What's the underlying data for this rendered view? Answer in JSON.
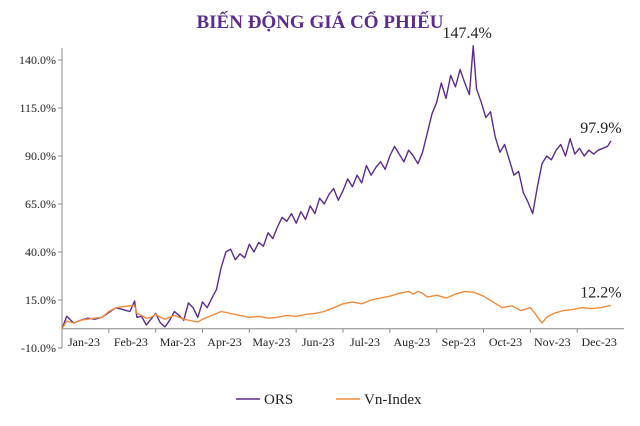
{
  "chart_data": {
    "type": "line",
    "title": "BIẾN ĐỘNG GIÁ CỔ PHIẾU",
    "xlabel": "",
    "ylabel": "",
    "x_ticks": [
      "Jan-23",
      "Feb-23",
      "Mar-23",
      "Apr-23",
      "May-23",
      "Jun-23",
      "Jul-23",
      "Aug-23",
      "Sep-23",
      "Oct-23",
      "Nov-23",
      "Dec-23"
    ],
    "y_ticks": [
      "-10.0%",
      "15.0%",
      "40.0%",
      "65.0%",
      "90.0%",
      "115.0%",
      "140.0%"
    ],
    "ylim": [
      -10,
      140
    ],
    "xlim": [
      0,
      12
    ],
    "grid": false,
    "legend": "bottom",
    "series": [
      {
        "name": "ORS",
        "color": "#5b2c8e",
        "points": [
          [
            0.0,
            0.0
          ],
          [
            0.1,
            6.5
          ],
          [
            0.25,
            3.0
          ],
          [
            0.4,
            4.5
          ],
          [
            0.55,
            5.5
          ],
          [
            0.7,
            5.0
          ],
          [
            0.85,
            6.0
          ],
          [
            1.0,
            8.5
          ],
          [
            1.15,
            11.0
          ],
          [
            1.3,
            10.0
          ],
          [
            1.45,
            9.0
          ],
          [
            1.55,
            14.5
          ],
          [
            1.6,
            6.0
          ],
          [
            1.7,
            6.5
          ],
          [
            1.8,
            2.0
          ],
          [
            1.9,
            5.0
          ],
          [
            2.0,
            8.0
          ],
          [
            2.1,
            3.0
          ],
          [
            2.2,
            1.0
          ],
          [
            2.3,
            4.5
          ],
          [
            2.4,
            9.0
          ],
          [
            2.5,
            7.0
          ],
          [
            2.6,
            4.5
          ],
          [
            2.7,
            13.5
          ],
          [
            2.8,
            11.0
          ],
          [
            2.9,
            6.0
          ],
          [
            3.0,
            14.0
          ],
          [
            3.1,
            11.0
          ],
          [
            3.2,
            16.0
          ],
          [
            3.3,
            20.5
          ],
          [
            3.4,
            32.0
          ],
          [
            3.5,
            40.0
          ],
          [
            3.6,
            41.5
          ],
          [
            3.7,
            36.0
          ],
          [
            3.8,
            39.0
          ],
          [
            3.9,
            37.0
          ],
          [
            4.0,
            44.0
          ],
          [
            4.1,
            40.0
          ],
          [
            4.2,
            45.0
          ],
          [
            4.3,
            43.0
          ],
          [
            4.4,
            50.0
          ],
          [
            4.5,
            47.0
          ],
          [
            4.6,
            53.0
          ],
          [
            4.7,
            58.0
          ],
          [
            4.8,
            56.0
          ],
          [
            4.9,
            60.0
          ],
          [
            5.0,
            55.0
          ],
          [
            5.1,
            61.0
          ],
          [
            5.2,
            57.0
          ],
          [
            5.3,
            64.0
          ],
          [
            5.4,
            60.0
          ],
          [
            5.5,
            68.0
          ],
          [
            5.6,
            65.0
          ],
          [
            5.7,
            70.0
          ],
          [
            5.8,
            73.0
          ],
          [
            5.9,
            67.0
          ],
          [
            6.0,
            72.0
          ],
          [
            6.1,
            78.0
          ],
          [
            6.2,
            74.0
          ],
          [
            6.3,
            80.0
          ],
          [
            6.4,
            76.0
          ],
          [
            6.5,
            85.0
          ],
          [
            6.6,
            80.0
          ],
          [
            6.7,
            84.0
          ],
          [
            6.8,
            87.0
          ],
          [
            6.9,
            83.0
          ],
          [
            7.0,
            90.0
          ],
          [
            7.1,
            95.0
          ],
          [
            7.2,
            91.0
          ],
          [
            7.3,
            87.0
          ],
          [
            7.4,
            93.0
          ],
          [
            7.5,
            90.0
          ],
          [
            7.6,
            86.0
          ],
          [
            7.7,
            92.0
          ],
          [
            7.8,
            102.0
          ],
          [
            7.9,
            112.0
          ],
          [
            8.0,
            118.0
          ],
          [
            8.1,
            128.0
          ],
          [
            8.2,
            120.0
          ],
          [
            8.3,
            132.0
          ],
          [
            8.4,
            126.0
          ],
          [
            8.5,
            135.0
          ],
          [
            8.6,
            128.0
          ],
          [
            8.7,
            122.0
          ],
          [
            8.78,
            147.4
          ],
          [
            8.85,
            125.0
          ],
          [
            8.95,
            118.0
          ],
          [
            9.05,
            110.0
          ],
          [
            9.15,
            113.0
          ],
          [
            9.25,
            100.0
          ],
          [
            9.35,
            92.0
          ],
          [
            9.45,
            96.0
          ],
          [
            9.55,
            88.0
          ],
          [
            9.65,
            80.0
          ],
          [
            9.75,
            82.0
          ],
          [
            9.85,
            71.0
          ],
          [
            9.95,
            66.0
          ],
          [
            10.05,
            60.0
          ],
          [
            10.15,
            74.0
          ],
          [
            10.25,
            86.0
          ],
          [
            10.35,
            90.0
          ],
          [
            10.45,
            88.0
          ],
          [
            10.55,
            93.0
          ],
          [
            10.65,
            96.0
          ],
          [
            10.75,
            90.0
          ],
          [
            10.85,
            99.0
          ],
          [
            10.95,
            91.0
          ],
          [
            11.05,
            94.0
          ],
          [
            11.15,
            90.0
          ],
          [
            11.25,
            93.0
          ],
          [
            11.35,
            91.0
          ],
          [
            11.45,
            93.0
          ],
          [
            11.55,
            94.0
          ],
          [
            11.65,
            95.0
          ],
          [
            11.72,
            97.9
          ]
        ]
      },
      {
        "name": "Vn-Index",
        "color": "#f08c3c",
        "points": [
          [
            0.0,
            0.0
          ],
          [
            0.1,
            4.0
          ],
          [
            0.25,
            3.0
          ],
          [
            0.4,
            4.5
          ],
          [
            0.55,
            5.0
          ],
          [
            0.7,
            5.5
          ],
          [
            0.85,
            6.0
          ],
          [
            1.0,
            9.0
          ],
          [
            1.15,
            11.0
          ],
          [
            1.3,
            11.5
          ],
          [
            1.45,
            12.0
          ],
          [
            1.55,
            12.0
          ],
          [
            1.6,
            8.0
          ],
          [
            1.7,
            7.0
          ],
          [
            1.8,
            5.5
          ],
          [
            1.9,
            6.0
          ],
          [
            2.0,
            7.5
          ],
          [
            2.1,
            6.0
          ],
          [
            2.2,
            5.0
          ],
          [
            2.3,
            6.0
          ],
          [
            2.4,
            7.0
          ],
          [
            2.5,
            6.0
          ],
          [
            2.6,
            5.0
          ],
          [
            2.7,
            4.5
          ],
          [
            2.8,
            4.0
          ],
          [
            2.9,
            3.5
          ],
          [
            3.0,
            5.0
          ],
          [
            3.2,
            7.0
          ],
          [
            3.4,
            9.0
          ],
          [
            3.6,
            8.0
          ],
          [
            3.8,
            7.0
          ],
          [
            4.0,
            6.0
          ],
          [
            4.2,
            6.5
          ],
          [
            4.4,
            5.5
          ],
          [
            4.6,
            6.0
          ],
          [
            4.8,
            7.0
          ],
          [
            5.0,
            6.5
          ],
          [
            5.2,
            7.5
          ],
          [
            5.4,
            8.0
          ],
          [
            5.6,
            9.0
          ],
          [
            5.8,
            11.0
          ],
          [
            6.0,
            13.0
          ],
          [
            6.2,
            14.0
          ],
          [
            6.4,
            13.0
          ],
          [
            6.6,
            15.0
          ],
          [
            6.8,
            16.0
          ],
          [
            7.0,
            17.0
          ],
          [
            7.2,
            18.5
          ],
          [
            7.4,
            19.5
          ],
          [
            7.5,
            18.0
          ],
          [
            7.6,
            19.5
          ],
          [
            7.7,
            18.5
          ],
          [
            7.8,
            16.5
          ],
          [
            8.0,
            17.5
          ],
          [
            8.2,
            16.0
          ],
          [
            8.4,
            18.0
          ],
          [
            8.6,
            19.5
          ],
          [
            8.8,
            19.0
          ],
          [
            9.0,
            17.0
          ],
          [
            9.2,
            14.0
          ],
          [
            9.4,
            11.0
          ],
          [
            9.6,
            12.0
          ],
          [
            9.8,
            9.5
          ],
          [
            10.0,
            11.0
          ],
          [
            10.1,
            8.0
          ],
          [
            10.2,
            4.5
          ],
          [
            10.25,
            3.0
          ],
          [
            10.35,
            6.0
          ],
          [
            10.5,
            8.0
          ],
          [
            10.7,
            9.5
          ],
          [
            10.9,
            10.0
          ],
          [
            11.1,
            11.0
          ],
          [
            11.3,
            10.5
          ],
          [
            11.5,
            11.0
          ],
          [
            11.72,
            12.2
          ]
        ]
      }
    ],
    "annotations": [
      {
        "text": "147.4%",
        "x": 8.78,
        "y": 147.4
      },
      {
        "text": "97.9%",
        "x": 11.72,
        "y": 97.9
      },
      {
        "text": "12.2%",
        "x": 11.72,
        "y": 12.2
      }
    ]
  }
}
